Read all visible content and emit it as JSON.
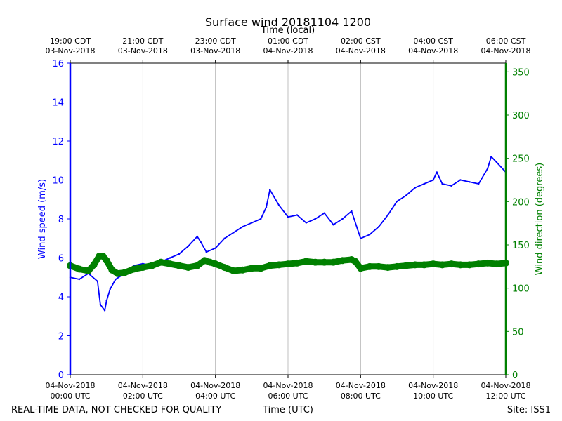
{
  "chart_data": {
    "type": "line",
    "title": "Surface wind 20181104 1200",
    "top_axis_label": "Time (local)",
    "xlabel": "Time (UTC)",
    "ylabel_left": "Wind speed (m/s)",
    "ylabel_right": "Wind direction (degrees)",
    "footer_left": "REAL-TIME DATA, NOT CHECKED FOR QUALITY",
    "footer_right": "Site: ISS1",
    "xlim_hours_utc": [
      0,
      12
    ],
    "ylim_left": [
      0,
      16
    ],
    "ylim_right": [
      0,
      360
    ],
    "grid": "vertical",
    "colors": {
      "speed": "#0000ff",
      "direction": "#008000",
      "grid": "#b0b0b0",
      "axis": "#000000"
    },
    "bottom_ticks": [
      {
        "hour": 0,
        "date": "04-Nov-2018",
        "time": "00:00 UTC"
      },
      {
        "hour": 2,
        "date": "04-Nov-2018",
        "time": "02:00 UTC"
      },
      {
        "hour": 4,
        "date": "04-Nov-2018",
        "time": "04:00 UTC"
      },
      {
        "hour": 6,
        "date": "04-Nov-2018",
        "time": "06:00 UTC"
      },
      {
        "hour": 8,
        "date": "04-Nov-2018",
        "time": "08:00 UTC"
      },
      {
        "hour": 10,
        "date": "04-Nov-2018",
        "time": "10:00 UTC"
      },
      {
        "hour": 12,
        "date": "04-Nov-2018",
        "time": "12:00 UTC"
      }
    ],
    "top_ticks": [
      {
        "hour": 0,
        "time": "19:00 CDT",
        "date": "03-Nov-2018"
      },
      {
        "hour": 2,
        "time": "21:00 CDT",
        "date": "03-Nov-2018"
      },
      {
        "hour": 4,
        "time": "23:00 CDT",
        "date": "03-Nov-2018"
      },
      {
        "hour": 6,
        "time": "01:00 CDT",
        "date": "04-Nov-2018"
      },
      {
        "hour": 8,
        "time": "02:00 CST",
        "date": "04-Nov-2018"
      },
      {
        "hour": 10,
        "time": "04:00 CST",
        "date": "04-Nov-2018"
      },
      {
        "hour": 12,
        "time": "06:00 CST",
        "date": "04-Nov-2018"
      }
    ],
    "left_ticks": [
      0,
      2,
      4,
      6,
      8,
      10,
      12,
      14,
      16
    ],
    "right_ticks": [
      0,
      50,
      100,
      150,
      200,
      250,
      300,
      350
    ],
    "series": [
      {
        "name": "Wind speed (m/s)",
        "axis": "left",
        "x_hours": [
          0,
          0.25,
          0.5,
          0.75,
          0.83,
          0.95,
          1.0,
          1.1,
          1.25,
          1.5,
          1.75,
          2.0,
          2.25,
          2.5,
          2.75,
          3.0,
          3.25,
          3.5,
          3.6,
          3.75,
          4.0,
          4.25,
          4.5,
          4.75,
          5.0,
          5.25,
          5.4,
          5.5,
          5.75,
          6.0,
          6.25,
          6.5,
          6.75,
          7.0,
          7.25,
          7.5,
          7.75,
          8.0,
          8.25,
          8.5,
          8.75,
          9.0,
          9.25,
          9.5,
          9.75,
          10.0,
          10.1,
          10.25,
          10.5,
          10.75,
          11.0,
          11.25,
          11.5,
          11.6,
          11.75,
          12.0
        ],
        "values": [
          5.0,
          4.9,
          5.2,
          4.8,
          3.6,
          3.3,
          3.8,
          4.4,
          4.9,
          5.2,
          5.6,
          5.7,
          5.6,
          5.8,
          6.0,
          6.2,
          6.6,
          7.1,
          6.8,
          6.3,
          6.5,
          7.0,
          7.3,
          7.6,
          7.8,
          8.0,
          8.6,
          9.5,
          8.7,
          8.1,
          8.2,
          7.8,
          8.0,
          8.3,
          7.7,
          8.0,
          8.4,
          7.0,
          7.2,
          7.6,
          8.2,
          8.9,
          9.2,
          9.6,
          9.8,
          10.0,
          10.4,
          9.8,
          9.7,
          10.0,
          9.9,
          9.8,
          10.6,
          11.2,
          10.9,
          10.4
        ]
      },
      {
        "name": "Wind direction (degrees)",
        "axis": "right",
        "x_hours": [
          0,
          0.25,
          0.5,
          0.65,
          0.8,
          0.9,
          1.0,
          1.15,
          1.3,
          1.5,
          1.75,
          2.0,
          2.25,
          2.5,
          2.75,
          3.0,
          3.25,
          3.5,
          3.7,
          3.85,
          4.0,
          4.25,
          4.5,
          4.75,
          5.0,
          5.25,
          5.5,
          5.75,
          6.0,
          6.25,
          6.5,
          6.75,
          7.0,
          7.25,
          7.5,
          7.75,
          7.85,
          8.0,
          8.25,
          8.5,
          8.75,
          9.0,
          9.25,
          9.5,
          9.75,
          10.0,
          10.25,
          10.5,
          10.75,
          11.0,
          11.25,
          11.5,
          11.75,
          12.0
        ],
        "values": [
          126,
          122,
          120,
          127,
          137,
          137,
          132,
          121,
          117,
          118,
          122,
          124,
          126,
          130,
          128,
          126,
          124,
          126,
          132,
          130,
          128,
          124,
          120,
          121,
          123,
          123,
          126,
          127,
          128,
          129,
          131,
          130,
          130,
          130,
          132,
          133,
          131,
          123,
          125,
          125,
          124,
          125,
          126,
          127,
          127,
          128,
          127,
          128,
          127,
          127,
          128,
          129,
          128,
          129
        ]
      }
    ]
  }
}
